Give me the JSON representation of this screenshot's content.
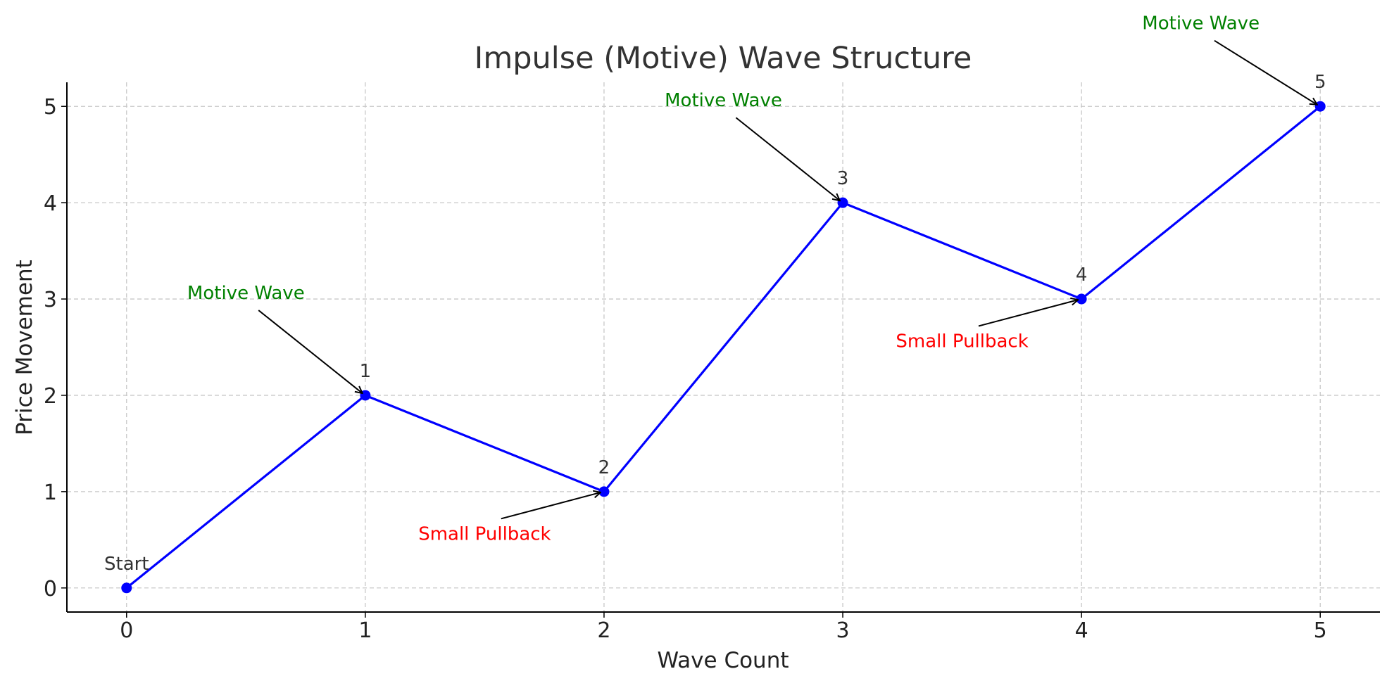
{
  "chart_data": {
    "type": "line",
    "title": "Impulse (Motive) Wave Structure",
    "xlabel": "Wave Count",
    "ylabel": "Price Movement",
    "xlim": [
      -0.25,
      5.25
    ],
    "ylim": [
      -0.25,
      5.25
    ],
    "xticks": [
      0,
      1,
      2,
      3,
      4,
      5
    ],
    "yticks": [
      0,
      1,
      2,
      3,
      4,
      5
    ],
    "grid": true,
    "x": [
      0,
      1,
      2,
      3,
      4,
      5
    ],
    "series": [
      {
        "values": [
          0,
          2,
          1,
          4,
          3,
          5
        ],
        "color": "#0000ff"
      }
    ],
    "point_labels": [
      "Start",
      "1",
      "2",
      "3",
      "4",
      "5"
    ],
    "annotations": [
      {
        "text": "Motive Wave",
        "point": [
          1,
          2
        ],
        "text_at": [
          0.5,
          3
        ],
        "color": "#008000"
      },
      {
        "text": "Small Pullback",
        "point": [
          2,
          1
        ],
        "text_at": [
          1.5,
          0.5
        ],
        "color": "#ff0000"
      },
      {
        "text": "Motive Wave",
        "point": [
          3,
          4
        ],
        "text_at": [
          2.5,
          5
        ],
        "color": "#008000"
      },
      {
        "text": "Small Pullback",
        "point": [
          4,
          3
        ],
        "text_at": [
          3.5,
          2.5
        ],
        "color": "#ff0000"
      },
      {
        "text": "Motive Wave",
        "point": [
          5,
          5
        ],
        "text_at": [
          4.5,
          5.8
        ],
        "color": "#008000"
      }
    ]
  }
}
